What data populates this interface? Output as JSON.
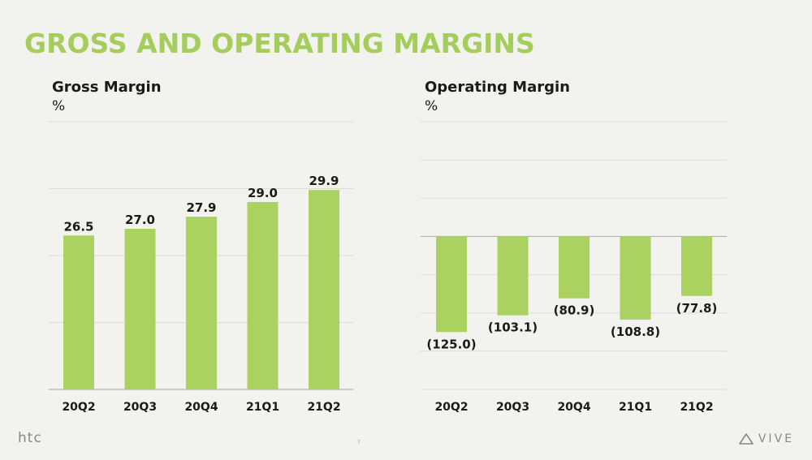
{
  "slide": {
    "title": "GROSS AND OPERATING MARGINS",
    "page_number": "7",
    "footer_left_logo": "htc",
    "footer_right_logo": "VIVE"
  },
  "colors": {
    "bar": "#abd160",
    "title": "#a5cd5c",
    "grid": "#dcdcd6",
    "text": "#1a1a1a",
    "background": "#f2f2ee"
  },
  "chart_data": [
    {
      "type": "bar",
      "title": "Gross Margin",
      "unit": "%",
      "categories": [
        "20Q2",
        "20Q3",
        "20Q4",
        "21Q1",
        "21Q2"
      ],
      "values": [
        26.5,
        27.0,
        27.9,
        29.0,
        29.9
      ],
      "data_labels": [
        "26.5",
        "27.0",
        "27.9",
        "29.0",
        "29.9"
      ],
      "ylim": [
        15,
        35
      ],
      "grid": true
    },
    {
      "type": "bar",
      "title": "Operating Margin",
      "unit": "%",
      "categories": [
        "20Q2",
        "20Q3",
        "20Q4",
        "21Q1",
        "21Q2"
      ],
      "values": [
        -125.0,
        -103.1,
        -80.9,
        -108.8,
        -77.8
      ],
      "data_labels": [
        "(125.0)",
        "(103.1)",
        "(80.9)",
        "(108.8)",
        "(77.8)"
      ],
      "ylim": [
        -200,
        150
      ],
      "grid": true
    }
  ]
}
